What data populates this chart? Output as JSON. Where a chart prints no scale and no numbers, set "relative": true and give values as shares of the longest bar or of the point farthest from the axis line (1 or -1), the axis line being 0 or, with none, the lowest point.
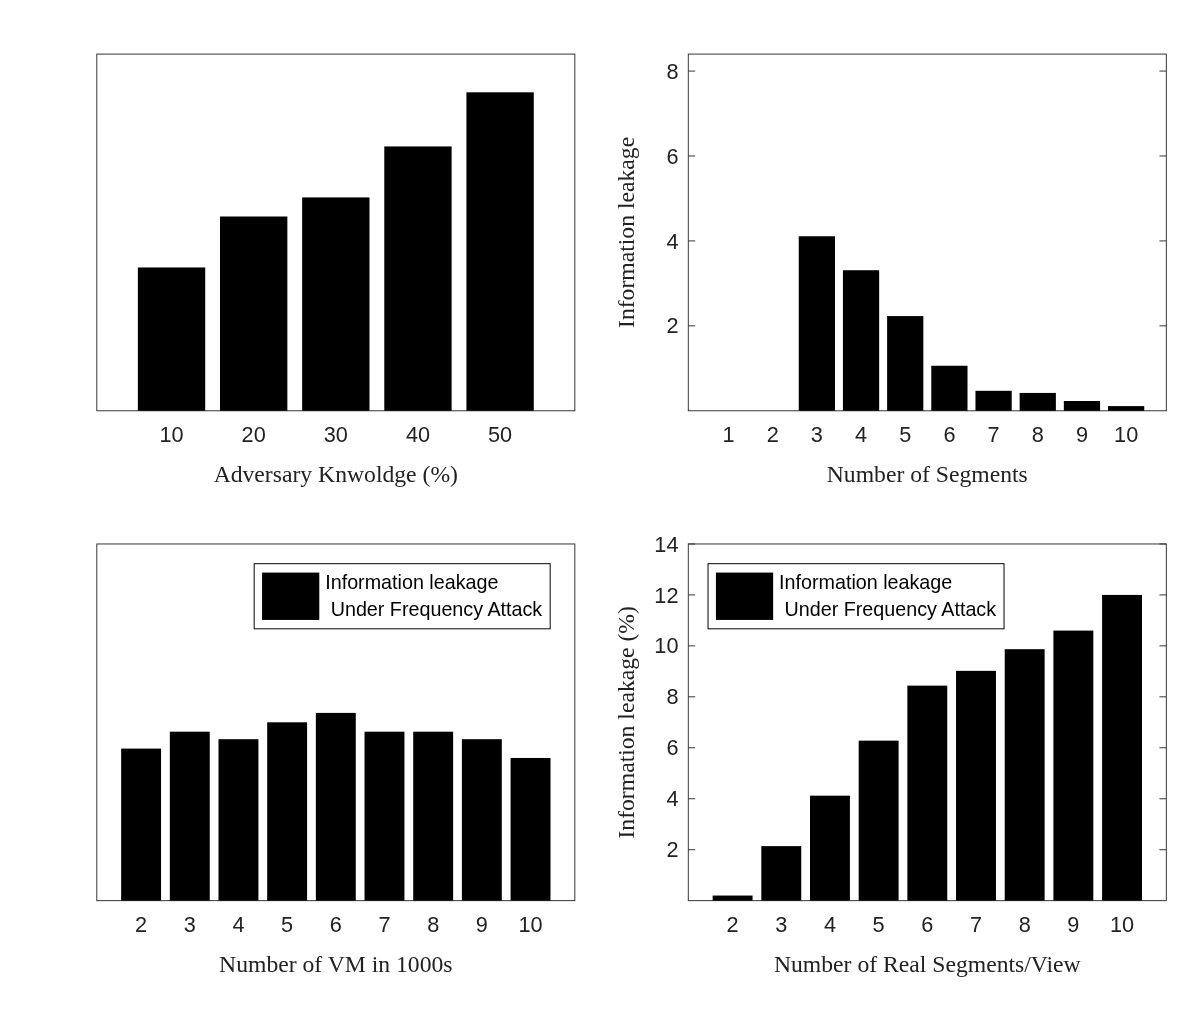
{
  "chart_data": [
    {
      "type": "bar",
      "xlabel": "Adversary Knwoldge (%)",
      "categories": [
        "10",
        "20",
        "30",
        "40",
        "50"
      ],
      "relative": true,
      "tick_labels": "x",
      "color": "#000000",
      "values": [
        0.45,
        0.61,
        0.67,
        0.83,
        1
      ]
    },
    {
      "type": "bar",
      "xlabel": "Number of Segments",
      "ylabel": "Information leakage",
      "categories": [
        "1",
        "2",
        "3",
        "4",
        "5",
        "6",
        "7",
        "8",
        "9",
        "10"
      ],
      "color": "#000000",
      "ylim": [
        0,
        8.4
      ],
      "yticks": [
        2,
        4,
        6,
        8
      ],
      "values": [
        null,
        null,
        4.11,
        3.31,
        2.23,
        1.06,
        0.47,
        0.42,
        0.23,
        0.11
      ]
    },
    {
      "type": "bar",
      "xlabel": "Number of VM in 1000s",
      "categories": [
        "2",
        "3",
        "4",
        "5",
        "6",
        "7",
        "8",
        "9",
        "10"
      ],
      "relative": true,
      "tick_labels": "x",
      "legend": "top right",
      "series": [
        {
          "name": "Information leakage\n Under Frequency Attack",
          "color": "#000000",
          "values": [
            0.81,
            0.9,
            0.86,
            0.95,
            1,
            0.9,
            0.9,
            0.86,
            0.76
          ]
        }
      ]
    },
    {
      "type": "bar",
      "xlabel": "Number of Real Segments/View",
      "ylabel": "Information leakage (%)",
      "categories": [
        "2",
        "3",
        "4",
        "5",
        "6",
        "7",
        "8",
        "9",
        "10"
      ],
      "ylim": [
        0,
        14
      ],
      "yticks": [
        2,
        4,
        6,
        8,
        10,
        12,
        14
      ],
      "legend": "top left",
      "series": [
        {
          "name": "Information leakage\n Under Frequency Attack",
          "color": "#000000",
          "values": [
            0.2,
            2.14,
            4.12,
            6.28,
            8.44,
            9.02,
            9.87,
            10.6,
            12.0
          ]
        }
      ]
    }
  ]
}
